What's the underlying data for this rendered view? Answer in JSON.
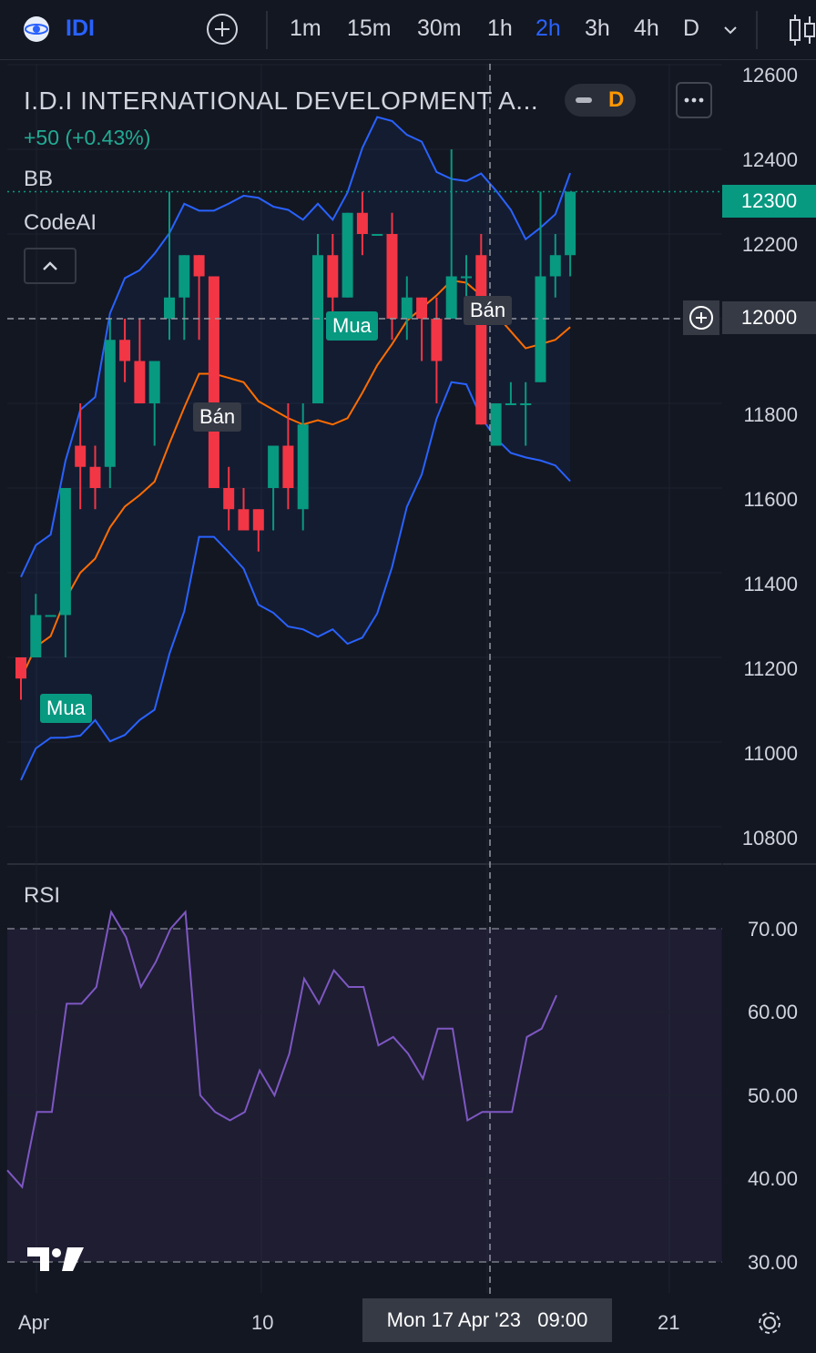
{
  "toolbar": {
    "symbol": "IDI",
    "intervals": [
      "1m",
      "15m",
      "30m",
      "1h",
      "2h",
      "3h",
      "4h",
      "D"
    ],
    "active_interval": "2h"
  },
  "legend": {
    "title": "I.D.I INTERNATIONAL DEVELOPMENT A...",
    "change": "+50 (+0.43%)",
    "badge": "D",
    "indicators": [
      "BB",
      "CodeAI"
    ]
  },
  "price_axis": [
    "12600",
    "12400",
    "12200",
    "12000",
    "11800",
    "11600",
    "11400",
    "11200",
    "11000",
    "10800"
  ],
  "last_price_tag": "12300",
  "crosshair_price_tag": "12000",
  "rsi": {
    "title": "RSI",
    "axis": [
      "70.00",
      "60.00",
      "50.00",
      "40.00",
      "30.00"
    ]
  },
  "time_axis": {
    "labels": [
      "Apr",
      "10",
      "21"
    ],
    "crosshair_label": "Mon 17 Apr '23   09:00"
  },
  "signals": [
    {
      "text": "Mua",
      "type": "buy"
    },
    {
      "text": "Bán",
      "type": "sell"
    },
    {
      "text": "Mua",
      "type": "buy"
    },
    {
      "text": "Bán",
      "type": "sell"
    }
  ],
  "colors": {
    "up": "#089981",
    "down": "#f23645",
    "bb_band": "#2962ff",
    "bb_basis": "#ff6d00",
    "rsi_line": "#7e57c2",
    "accent": "#2962ff"
  },
  "chart_data": {
    "type": "candlestick",
    "ohlc": [
      [
        11200,
        11200,
        11100,
        11150
      ],
      [
        11200,
        11350,
        11200,
        11300
      ],
      [
        11300,
        11300,
        11300,
        11300
      ],
      [
        11300,
        11600,
        11200,
        11600
      ],
      [
        11700,
        11800,
        11550,
        11650
      ],
      [
        11650,
        11700,
        11550,
        11600
      ],
      [
        11650,
        12000,
        11600,
        11950
      ],
      [
        11950,
        12000,
        11850,
        11900
      ],
      [
        11900,
        12000,
        11800,
        11800
      ],
      [
        11800,
        11900,
        11700,
        11900
      ],
      [
        12000,
        12300,
        11950,
        12050
      ],
      [
        12050,
        12150,
        11950,
        12150
      ],
      [
        12150,
        12150,
        11950,
        12100
      ],
      [
        12100,
        12100,
        11600,
        11600
      ],
      [
        11600,
        11650,
        11500,
        11550
      ],
      [
        11550,
        11600,
        11500,
        11500
      ],
      [
        11550,
        11550,
        11450,
        11500
      ],
      [
        11600,
        11700,
        11500,
        11700
      ],
      [
        11700,
        11800,
        11550,
        11600
      ],
      [
        11550,
        11800,
        11500,
        11750
      ],
      [
        11800,
        12200,
        11800,
        12150
      ],
      [
        12150,
        12200,
        12000,
        12050
      ],
      [
        12050,
        12250,
        12050,
        12250
      ],
      [
        12250,
        12300,
        12150,
        12200
      ],
      [
        12200,
        12200,
        12200,
        12200
      ],
      [
        12200,
        12250,
        11950,
        12000
      ],
      [
        12000,
        12100,
        11950,
        12050
      ],
      [
        12050,
        12050,
        11900,
        12000
      ],
      [
        12000,
        12050,
        11800,
        11900
      ],
      [
        12000,
        12400,
        12000,
        12100
      ],
      [
        12100,
        12150,
        12050,
        12100
      ],
      [
        12150,
        12200,
        11750,
        11750
      ],
      [
        11700,
        11800,
        11700,
        11800
      ],
      [
        11800,
        11850,
        11800,
        11800
      ],
      [
        11800,
        11850,
        11700,
        11800
      ],
      [
        11850,
        12300,
        11850,
        12100
      ],
      [
        12100,
        12200,
        12050,
        12150
      ],
      [
        12150,
        12300,
        12100,
        12300
      ]
    ],
    "rsi_ylim": [
      30,
      70
    ],
    "rsi_values": [
      41,
      39,
      48,
      48,
      61,
      61,
      63,
      72,
      69,
      63,
      66,
      70,
      72,
      50,
      48,
      47,
      48,
      53,
      50,
      55,
      64,
      61,
      65,
      63,
      63,
      56,
      57,
      55,
      52,
      58,
      58,
      47,
      48,
      48,
      48,
      57,
      58,
      62
    ],
    "ylim": [
      10700,
      12650
    ]
  }
}
